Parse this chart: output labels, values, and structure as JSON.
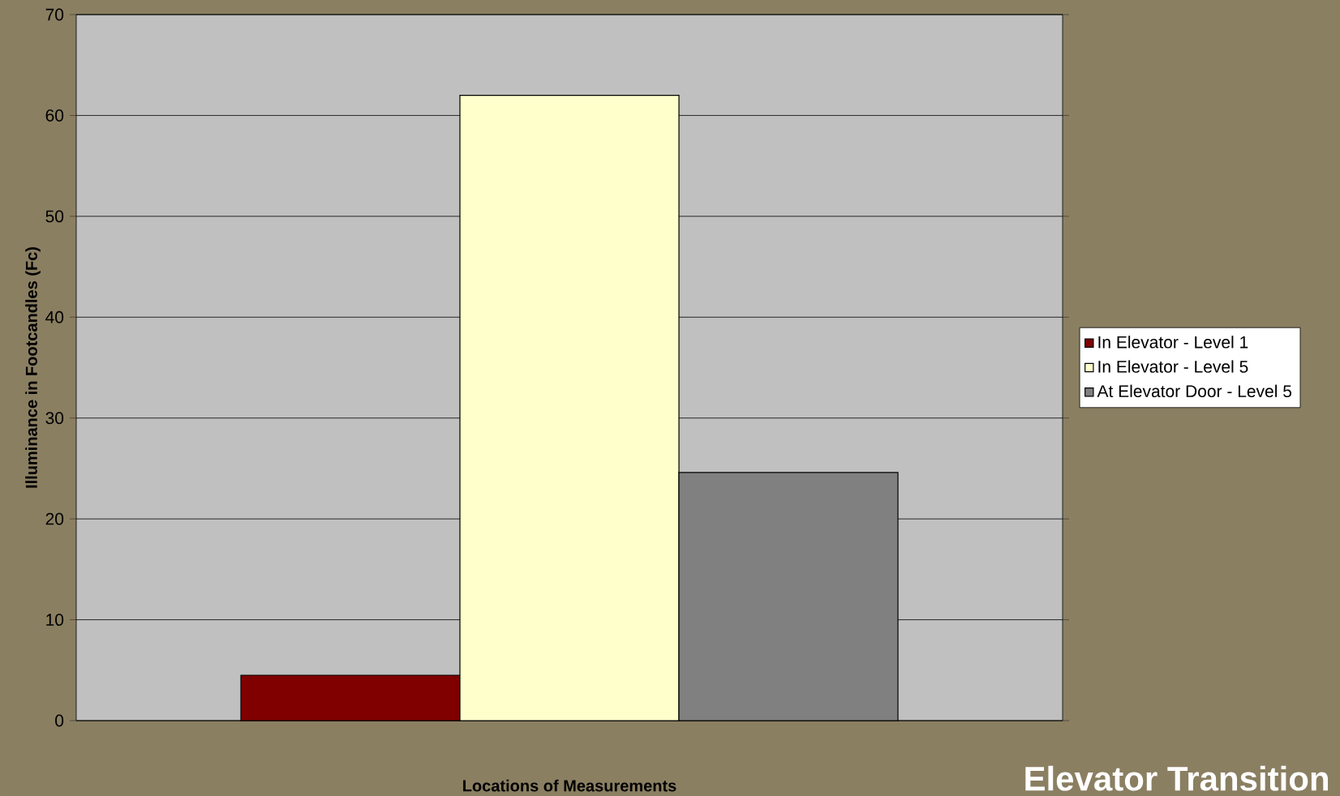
{
  "chart_data": {
    "type": "bar",
    "title": "Elevator Transition",
    "xlabel": "Locations of Measurements",
    "ylabel": "Illuminance in Footcandles (Fc)",
    "categories": [
      null
    ],
    "series": [
      {
        "name": "In Elevator  - Level 1",
        "color": "#800000",
        "values": [
          4.5
        ]
      },
      {
        "name": "In Elevator - Level 5",
        "color": "#ffffcc",
        "values": [
          62
        ]
      },
      {
        "name": "At Elevator Door - Level 5",
        "color": "#808080",
        "values": [
          24.6
        ]
      }
    ],
    "ylim": [
      0,
      70
    ],
    "yticks": [
      0,
      10,
      20,
      30,
      40,
      50,
      60,
      70
    ],
    "grid": "y",
    "legend": "right"
  }
}
